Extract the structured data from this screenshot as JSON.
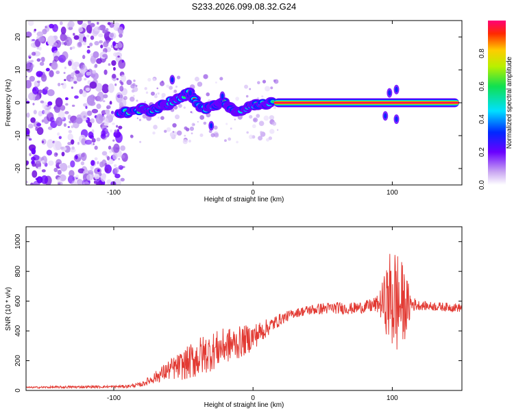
{
  "title": "S233.2026.099.08.32.G24",
  "colors": {
    "line": "#e23a33",
    "frame": "#000000"
  },
  "chart_data": [
    {
      "type": "heatmap",
      "title": "S233.2026.099.08.32.G24",
      "xlabel": "Height of straight line (km)",
      "ylabel": "Frequency (Hz)",
      "xlim": [
        -163,
        150
      ],
      "ylim": [
        -25,
        25
      ],
      "xticks": [
        -100,
        0,
        100
      ],
      "yticks": [
        -20,
        -10,
        0,
        10,
        20
      ],
      "grid": false,
      "colorbar": {
        "label": "Normalized spectral amplitude",
        "range": [
          0,
          1
        ],
        "ticks": [
          "0.0",
          "0.2",
          "0.4",
          "0.6",
          "0.8"
        ],
        "colormap": "rainbow"
      },
      "ridge": {
        "description": "signal carrier line",
        "x": [
          -95,
          -90,
          -85,
          -80,
          -75,
          -70,
          -65,
          -60,
          -55,
          -50,
          -45,
          -40,
          -35,
          -30,
          -25,
          -20,
          -15,
          -10,
          -5,
          0,
          5,
          10,
          15,
          20,
          40,
          60,
          80,
          90,
          95,
          100,
          105,
          110,
          120,
          130,
          140,
          148
        ],
        "freq_hz": [
          -3.5,
          -3,
          -2.5,
          -2,
          -2.5,
          -2,
          -1,
          0,
          1,
          2,
          3,
          -1,
          -2,
          -1.5,
          0,
          0.5,
          -2,
          -2.5,
          -1.5,
          -1,
          -0.5,
          -0.5,
          0,
          0,
          0,
          0,
          0,
          0,
          -0.5,
          -1,
          0,
          0,
          0,
          0,
          0,
          0
        ]
      },
      "noise_region": {
        "x_from": -163,
        "x_to": -92,
        "freq_from": -25,
        "freq_to": 25
      }
    },
    {
      "type": "line",
      "title": "",
      "xlabel": "Height of straight line (km)",
      "ylabel": "SNR (10 * v/v)",
      "xlim": [
        -163,
        150
      ],
      "ylim": [
        0,
        1100
      ],
      "xticks": [
        -100,
        0,
        100
      ],
      "yticks": [
        0,
        200,
        400,
        600,
        800,
        1000
      ],
      "grid": false,
      "series": [
        {
          "name": "SNR",
          "envelope_x": [
            -163,
            -140,
            -120,
            -100,
            -90,
            -80,
            -70,
            -60,
            -50,
            -40,
            -30,
            -20,
            -10,
            0,
            10,
            20,
            30,
            40,
            50,
            60,
            70,
            80,
            90,
            95,
            100,
            105,
            110,
            115,
            120,
            130,
            140,
            150
          ],
          "envelope_y": [
            20,
            22,
            24,
            25,
            28,
            40,
            90,
            140,
            170,
            220,
            260,
            300,
            320,
            360,
            420,
            480,
            520,
            540,
            550,
            555,
            550,
            560,
            580,
            600,
            620,
            580,
            570,
            580,
            570,
            565,
            560,
            555
          ],
          "noise_amplitude": [
            5,
            8,
            8,
            8,
            10,
            15,
            40,
            70,
            100,
            140,
            130,
            120,
            110,
            90,
            60,
            40,
            30,
            35,
            40,
            40,
            40,
            40,
            60,
            200,
            400,
            350,
            200,
            50,
            30,
            30,
            30,
            30
          ]
        }
      ]
    }
  ]
}
